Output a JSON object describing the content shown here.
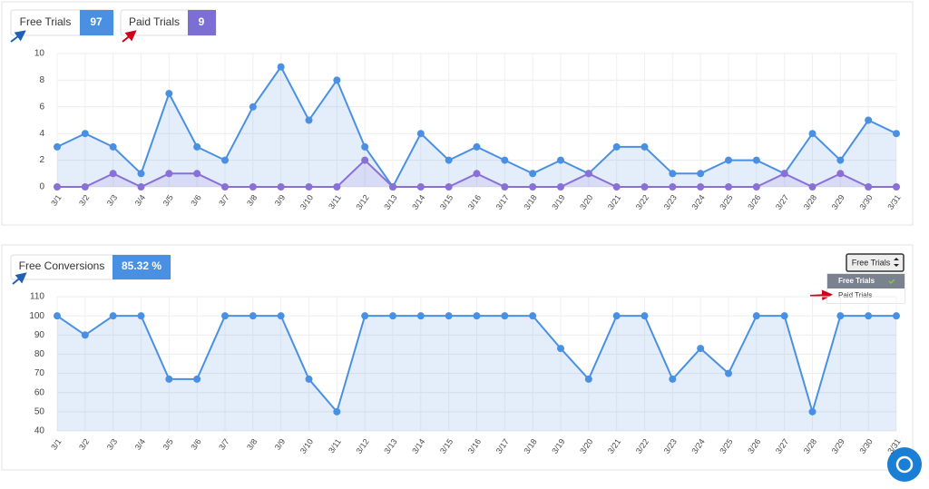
{
  "badges": [
    {
      "label": "Free Trials",
      "value": 97
    },
    {
      "label": "Paid Trials",
      "value": 9
    },
    {
      "label": "Free Conversions",
      "value": "85.32 %"
    }
  ],
  "dropdown": {
    "button": "Free Trials",
    "options": [
      "Free Trials",
      "Paid Trials"
    ]
  },
  "chart_data": [
    {
      "type": "line",
      "categories": [
        "3/1",
        "3/2",
        "3/3",
        "3/4",
        "3/5",
        "3/6",
        "3/7",
        "3/8",
        "3/9",
        "3/10",
        "3/11",
        "3/12",
        "3/13",
        "3/14",
        "3/15",
        "3/16",
        "3/17",
        "3/18",
        "3/19",
        "3/20",
        "3/21",
        "3/22",
        "3/23",
        "3/24",
        "3/25",
        "3/26",
        "3/27",
        "3/28",
        "3/29",
        "3/30",
        "3/31"
      ],
      "series": [
        {
          "color": "#4a90e2",
          "values": [
            3,
            4,
            3,
            1,
            7,
            3,
            2,
            6,
            9,
            5,
            8,
            3,
            0,
            4,
            2,
            3,
            2,
            1,
            2,
            1,
            3,
            3,
            1,
            1,
            2,
            2,
            1,
            4,
            2,
            5,
            4
          ]
        },
        {
          "color": "#8a6fd6",
          "values": [
            0,
            0,
            1,
            0,
            1,
            1,
            0,
            0,
            0,
            0,
            0,
            2,
            0,
            0,
            0,
            1,
            0,
            0,
            0,
            1,
            0,
            0,
            0,
            0,
            0,
            0,
            1,
            0,
            1,
            0,
            0
          ]
        }
      ],
      "ylim": [
        0,
        10
      ],
      "yticks": [
        0,
        2,
        4,
        6,
        8,
        10
      ],
      "grid": true
    },
    {
      "type": "line",
      "categories": [
        "3/1",
        "3/2",
        "3/3",
        "3/4",
        "3/5",
        "3/6",
        "3/7",
        "3/8",
        "3/9",
        "3/10",
        "3/11",
        "3/12",
        "3/13",
        "3/14",
        "3/15",
        "3/16",
        "3/17",
        "3/18",
        "3/19",
        "3/20",
        "3/21",
        "3/22",
        "3/23",
        "3/24",
        "3/25",
        "3/26",
        "3/27",
        "3/28",
        "3/29",
        "3/30",
        "3/31"
      ],
      "series": [
        {
          "color": "#4a90e2",
          "values": [
            100,
            90,
            100,
            100,
            67,
            67,
            100,
            100,
            100,
            67,
            50,
            100,
            100,
            100,
            100,
            100,
            100,
            100,
            83,
            67,
            100,
            100,
            67,
            83,
            70,
            100,
            100,
            50,
            100,
            100,
            100
          ]
        }
      ],
      "ylim": [
        40,
        110
      ],
      "yticks": [
        40,
        50,
        60,
        70,
        80,
        90,
        100,
        110
      ],
      "grid": true
    }
  ]
}
